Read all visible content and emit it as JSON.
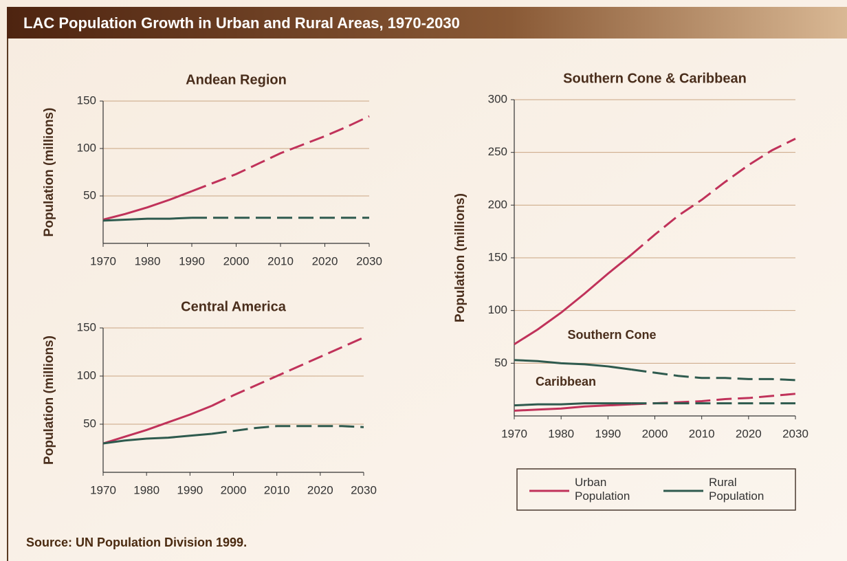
{
  "title": "LAC Population Growth in Urban and Rural Areas, 1970-2030",
  "source": "Source:  UN Population Division 1999.",
  "legend": [
    {
      "name": "Urban Population",
      "color": "#c0325a"
    },
    {
      "name": "Rural Population",
      "color": "#2e5a4e"
    }
  ],
  "chart_data": [
    {
      "type": "line",
      "title": "Andean Region",
      "y_label": "Population (millions)",
      "x": [
        1970,
        1975,
        1980,
        1985,
        1990,
        1995,
        2000,
        2005,
        2010,
        2015,
        2020,
        2025,
        2030
      ],
      "xlim": [
        1970,
        2030
      ],
      "xticks": [
        1970,
        1980,
        1990,
        2000,
        2010,
        2020,
        2030
      ],
      "ylim": [
        0,
        150
      ],
      "yticks": [
        50,
        100,
        150
      ],
      "grid": true,
      "dash_from": 1990,
      "series": [
        {
          "color": "#c0325a",
          "values": [
            25,
            31,
            38,
            46,
            55,
            64,
            73,
            84,
            95,
            104,
            113,
            123,
            134
          ]
        },
        {
          "color": "#2e5a4e",
          "values": [
            24,
            25,
            26,
            26,
            27,
            27,
            27,
            27,
            27,
            27,
            27,
            27,
            27
          ]
        }
      ]
    },
    {
      "type": "line",
      "title": "Central America",
      "y_label": "Population (millions)",
      "x": [
        1970,
        1975,
        1980,
        1985,
        1990,
        1995,
        2000,
        2005,
        2010,
        2015,
        2020,
        2025,
        2030
      ],
      "xlim": [
        1970,
        2030
      ],
      "xticks": [
        1970,
        1980,
        1990,
        2000,
        2010,
        2020,
        2030
      ],
      "ylim": [
        0,
        150
      ],
      "yticks": [
        50,
        100,
        150
      ],
      "grid": true,
      "dash_from": 1995,
      "series": [
        {
          "color": "#c0325a",
          "values": [
            30,
            37,
            44,
            52,
            60,
            69,
            80,
            90,
            100,
            110,
            120,
            130,
            140
          ]
        },
        {
          "color": "#2e5a4e",
          "values": [
            30,
            33,
            35,
            36,
            38,
            40,
            43,
            46,
            48,
            48,
            48,
            48,
            47
          ]
        }
      ]
    },
    {
      "type": "line",
      "title": "Southern Cone & Caribbean",
      "y_label": "Population (millions)",
      "annotations": [
        "Southern Cone",
        "Caribbean"
      ],
      "x": [
        1970,
        1975,
        1980,
        1985,
        1990,
        1995,
        2000,
        2005,
        2010,
        2015,
        2020,
        2025,
        2030
      ],
      "xlim": [
        1970,
        2030
      ],
      "xticks": [
        1970,
        1980,
        1990,
        2000,
        2010,
        2020,
        2030
      ],
      "ylim": [
        0,
        300
      ],
      "yticks": [
        50,
        100,
        150,
        200,
        250,
        300
      ],
      "grid": true,
      "dash_from": 1995,
      "series": [
        {
          "color": "#c0325a",
          "values": [
            68,
            82,
            98,
            116,
            135,
            153,
            172,
            190,
            205,
            222,
            238,
            252,
            263
          ]
        },
        {
          "color": "#2e5a4e",
          "values": [
            53,
            52,
            50,
            49,
            47,
            44,
            41,
            38,
            36,
            36,
            35,
            35,
            34
          ]
        },
        {
          "color": "#c0325a",
          "values": [
            5,
            6,
            7,
            9,
            10,
            11,
            12,
            13,
            14,
            16,
            17,
            19,
            21
          ]
        },
        {
          "color": "#2e5a4e",
          "values": [
            10,
            11,
            11,
            12,
            12,
            12,
            12,
            12,
            12,
            12,
            12,
            12,
            12
          ]
        }
      ]
    }
  ]
}
